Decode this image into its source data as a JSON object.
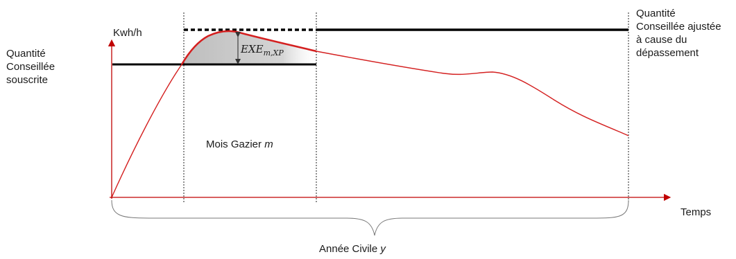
{
  "labels": {
    "y_axis": "Kwh/h",
    "x_axis": "Temps",
    "left_label": "Quantité\nConseillée\nsouscrite",
    "right_label": "Quantité\nConseillée ajustée\nà cause du\ndépassement",
    "month_prefix": "Mois Gazier ",
    "month_var": "m",
    "year_prefix": "Année Civile ",
    "year_var": "y",
    "exe_main": "EXE",
    "exe_sub": "m,XP"
  },
  "colors": {
    "axis": "#c00000",
    "curve": "#d42020",
    "threshold": "#000000",
    "shade": "#c8c8c8"
  }
}
